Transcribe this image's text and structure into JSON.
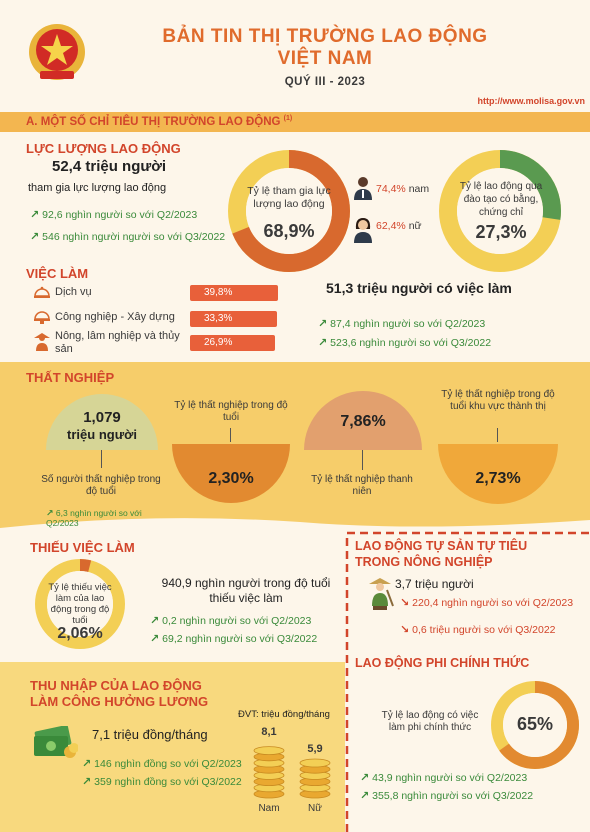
{
  "header": {
    "title_line1": "BẢN TIN THỊ TRƯỜNG LAO ĐỘNG",
    "title_line2": "VIỆT NAM",
    "subtitle": "QUÝ III - 2023",
    "url": "http://www.molisa.gov.vn"
  },
  "section_a": {
    "label": "A. MỘT SỐ CHỈ TIÊU THỊ TRƯỜNG LAO ĐỘNG",
    "note": "(1)"
  },
  "labor_force": {
    "heading": "LỰC LƯỢNG LAO ĐỘNG",
    "total": "52,4 triệu người",
    "total_caption": "tham gia lực lượng lao động",
    "change_q2": "92,6 nghìn người so với Q2/2023",
    "change_q3": "546 nghìn người người so với Q3/2022",
    "participation_label": "Tỷ lệ tham gia lực lượng lao động",
    "participation_value": "68,9%",
    "participation_fraction": 0.689,
    "male_value": "74,4%",
    "male_label": "nam",
    "female_value": "62,4%",
    "female_label": "nữ",
    "trained_label": "Tỷ lệ lao động qua đào tạo có bằng, chứng chỉ",
    "trained_value": "27,3%",
    "trained_fraction": 0.273
  },
  "employment": {
    "heading": "VIỆC LÀM",
    "sectors": [
      {
        "name": "Dịch vụ",
        "value": "39,8%",
        "fraction": 0.398,
        "icon": "service-icon"
      },
      {
        "name": "Công nghiệp - Xây dựng",
        "value": "33,3%",
        "fraction": 0.333,
        "icon": "industry-icon"
      },
      {
        "name": "Nông, lâm nghiệp và thủy sản",
        "value": "26,9%",
        "fraction": 0.269,
        "icon": "agriculture-icon"
      }
    ],
    "employed_total": "51,3 triệu người có việc làm",
    "change_q2": "87,4 nghìn người so với Q2/2023",
    "change_q3": "523,6 nghìn người so với Q3/2022"
  },
  "unemployment": {
    "heading": "THẤT NGHIỆP",
    "count_value": "1,079",
    "count_unit": "triệu người",
    "count_label": "Số người thất nghiệp trong độ tuổi",
    "count_change": "6,3 nghìn người so với Q2/2023",
    "rate_label": "Tỷ lệ thất nghiệp trong độ tuổi",
    "rate_value": "2,30%",
    "youth_value": "7,86%",
    "youth_label": "Tỷ lệ thất nghiệp thanh niên",
    "urban_label": "Tỷ lệ thất nghiệp trong độ tuổi khu vực thành thị",
    "urban_value": "2,73%"
  },
  "underemployment": {
    "heading": "THIẾU VIỆC LÀM",
    "rate_label": "Tỷ lệ thiếu việc làm của lao động trong độ tuổi",
    "rate_value": "2,06%",
    "rate_fraction": 0.0206,
    "count": "940,9 nghìn người trong độ tuổi thiếu việc làm",
    "change_q2": "0,2 nghìn người so với Q2/2023",
    "change_q3": "69,2 nghìn người so với Q3/2022"
  },
  "self_employed": {
    "heading_line1": "LAO ĐỘNG TỰ SẢN TỰ TIÊU",
    "heading_line2": "TRONG NÔNG NGHIỆP",
    "count": "3,7 triệu người",
    "change_q2": "220,4 nghìn người so với Q2/2023",
    "change_q3": "0,6 triệu người so với Q3/2022"
  },
  "informal": {
    "heading": "LAO ĐỘNG PHI CHÍNH THỨC",
    "label": "Tỷ lệ lao động có việc làm phi chính thức",
    "value": "65%",
    "fraction": 0.65,
    "change_q2": "43,9 nghìn người so với Q2/2023",
    "change_q3": "355,8 nghìn người so với Q3/2022"
  },
  "income": {
    "heading_line1": "THU NHẬP CỦA LAO ĐỘNG",
    "heading_line2": "LÀM CÔNG HƯỞNG LƯƠNG",
    "average": "7,1 triệu đồng/tháng",
    "change_q2": "146 nghìn đồng so với Q2/2023",
    "change_q3": "359 nghìn đồng so với Q3/2022",
    "unit": "ĐVT: triệu đồng/tháng",
    "male_value": "8,1",
    "male_label": "Nam",
    "female_value": "5,9",
    "female_label": "Nữ"
  },
  "colors": {
    "accent_orange": "#e06b2c",
    "accent_red": "#d2452b",
    "yellow": "#f3cf55",
    "band_yellow": "#f6cd6a",
    "cream": "#fdf6ea",
    "green": "#3a8a3a",
    "dark_orange": "#d8692e"
  }
}
